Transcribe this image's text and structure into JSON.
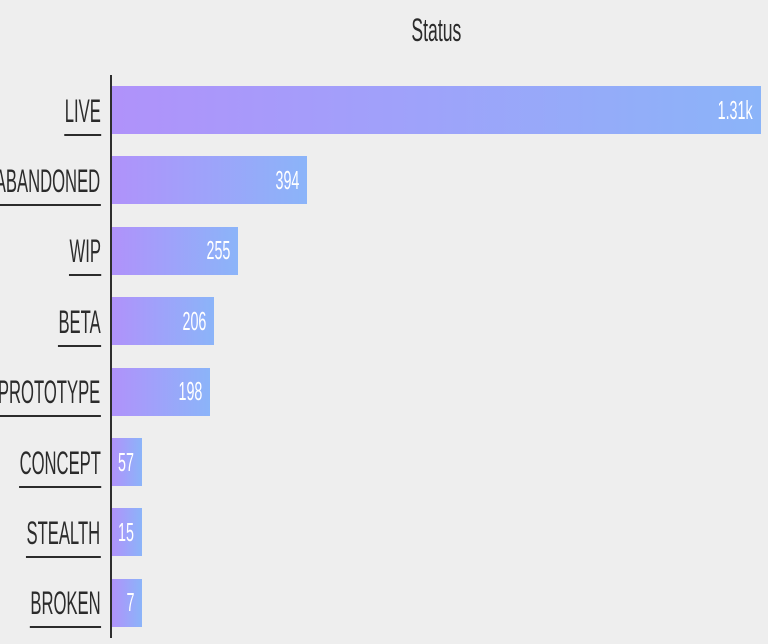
{
  "chart": {
    "title": "Status",
    "background_color": "#eeeeee",
    "axis_color": "#2e2e2e",
    "label_color": "#2b2b2b",
    "value_text_color": "#ffffff",
    "bar_gradient_start": "#b092fa",
    "bar_gradient_end": "#8bb4f9"
  },
  "chart_data": {
    "type": "bar",
    "orientation": "horizontal",
    "title": "Status",
    "categories": [
      "LIVE",
      "ABANDONED",
      "WIP",
      "BETA",
      "PROTOTYPE",
      "CONCEPT",
      "STEALTH",
      "BROKEN"
    ],
    "values": [
      1310,
      394,
      255,
      206,
      198,
      57,
      15,
      7
    ],
    "value_labels": [
      "1.31k",
      "394",
      "255",
      "206",
      "198",
      "57",
      "15",
      "7"
    ],
    "xlim": [
      0,
      1310
    ],
    "grid": false,
    "legend": false,
    "value_label_position": "inside-end",
    "category_labels_underlined": true,
    "bar_color_gradient": [
      "#b092fa",
      "#8bb4f9"
    ]
  }
}
